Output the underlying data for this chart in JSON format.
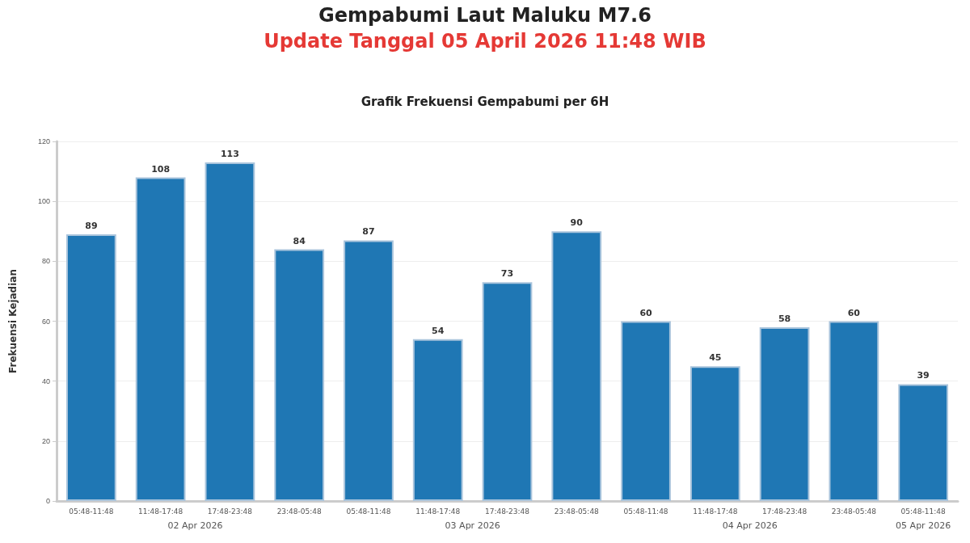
{
  "chart_data": {
    "type": "bar",
    "title": "Gempabumi Laut Maluku M7.6",
    "subtitle": "Update Tanggal 05 April 2026 11:48 WIB",
    "annotations": [
      "Grafik Frekuensi Gempabumi per 6H",
      "02 Apr 2026",
      "03 Apr 2026",
      "04 Apr 2026",
      "05 Apr 2026"
    ],
    "ylabel": "Frekuensi Kejadian",
    "categories": [
      "05:48-11:48",
      "11:48-17:48",
      "17:48-23:48",
      "23:48-05:48",
      "05:48-11:48",
      "11:48-17:48",
      "17:48-23:48",
      "23:48-05:48",
      "05:48-11:48",
      "11:48-17:48",
      "17:48-23:48",
      "23:48-05:48",
      "05:48-11:48"
    ],
    "values": [
      89,
      108,
      113,
      84,
      87,
      54,
      73,
      90,
      60,
      45,
      58,
      60,
      39
    ],
    "color": "#1f77b4",
    "ylim": [
      0,
      120
    ],
    "yticks": [
      0,
      20,
      40,
      60,
      80,
      100,
      120
    ],
    "grid": "y",
    "data_labels": true
  }
}
